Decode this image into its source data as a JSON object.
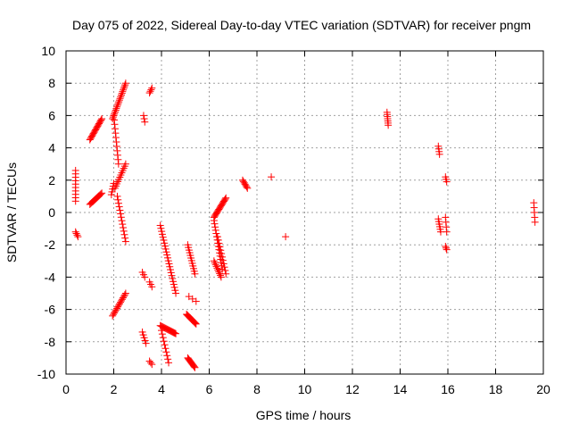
{
  "chart_data": {
    "type": "scatter",
    "title": "Day 075 of 2022, Sidereal Day-to-day VTEC variation (SDTVAR) for receiver pngm",
    "xlabel": "GPS time / hours",
    "ylabel": "SDTVAR / TECUs",
    "xlim": [
      0,
      20
    ],
    "ylim": [
      -10,
      10
    ],
    "xticks": [
      "0",
      "2",
      "4",
      "6",
      "8",
      "10",
      "12",
      "14",
      "16",
      "18",
      "20"
    ],
    "yticks": [
      "-10",
      "-8",
      "-6",
      "-4",
      "-2",
      "0",
      "2",
      "4",
      "6",
      "8",
      "10"
    ],
    "grid": true,
    "marker": "plus",
    "color": "#ff0000",
    "series": [
      {
        "name": "SDTVAR",
        "segments": [
          [
            0.4,
            0.4,
            2.6,
            0.7,
            10
          ],
          [
            0.4,
            0.5,
            -1.2,
            -1.5,
            4
          ],
          [
            1.0,
            1.5,
            4.5,
            5.8,
            18
          ],
          [
            1.0,
            1.5,
            0.5,
            1.2,
            14
          ],
          [
            1.9,
            2.0,
            1.1,
            1.8,
            5
          ],
          [
            1.95,
            2.5,
            5.8,
            8.0,
            22
          ],
          [
            2.0,
            2.2,
            6.0,
            3.0,
            12
          ],
          [
            2.05,
            2.5,
            1.5,
            3.0,
            12
          ],
          [
            2.15,
            2.5,
            1.0,
            -1.8,
            14
          ],
          [
            1.95,
            2.5,
            -6.4,
            -5.0,
            16
          ],
          [
            3.25,
            3.3,
            6.0,
            5.6,
            3
          ],
          [
            3.5,
            3.6,
            7.4,
            7.7,
            4
          ],
          [
            3.2,
            3.3,
            -3.7,
            -4.0,
            3
          ],
          [
            3.5,
            3.6,
            -4.3,
            -4.6,
            3
          ],
          [
            3.2,
            3.35,
            -7.4,
            -8.1,
            5
          ],
          [
            3.5,
            3.6,
            -9.2,
            -9.4,
            3
          ],
          [
            3.95,
            4.6,
            -0.8,
            -5.0,
            24
          ],
          [
            3.95,
            4.6,
            -7.0,
            -7.5,
            18
          ],
          [
            4.0,
            4.3,
            -7.3,
            -9.3,
            10
          ],
          [
            5.1,
            5.4,
            -2.0,
            -3.8,
            12
          ],
          [
            5.15,
            5.45,
            -5.2,
            -5.5,
            3
          ],
          [
            5.05,
            5.45,
            -6.3,
            -6.9,
            14
          ],
          [
            5.1,
            5.4,
            -9.0,
            -9.6,
            12
          ],
          [
            6.2,
            6.7,
            -0.3,
            0.9,
            18
          ],
          [
            6.2,
            6.55,
            -0.5,
            -3.5,
            16
          ],
          [
            6.2,
            6.5,
            -3.0,
            -4.0,
            10
          ],
          [
            6.35,
            6.7,
            -1.5,
            -3.8,
            12
          ],
          [
            7.4,
            7.6,
            2.0,
            1.5,
            7
          ],
          [
            8.6,
            8.6,
            2.2,
            2.2,
            1
          ],
          [
            9.2,
            9.2,
            -1.5,
            -1.5,
            1
          ],
          [
            13.45,
            13.5,
            6.2,
            5.4,
            7
          ],
          [
            15.6,
            15.65,
            4.1,
            3.6,
            4
          ],
          [
            15.6,
            15.7,
            -0.4,
            -1.2,
            6
          ],
          [
            15.9,
            15.95,
            -0.3,
            -1.2,
            4
          ],
          [
            15.9,
            15.95,
            2.2,
            1.9,
            3
          ],
          [
            15.9,
            15.95,
            -2.1,
            -2.3,
            3
          ],
          [
            19.6,
            19.65,
            0.6,
            -0.6,
            5
          ]
        ]
      }
    ]
  }
}
